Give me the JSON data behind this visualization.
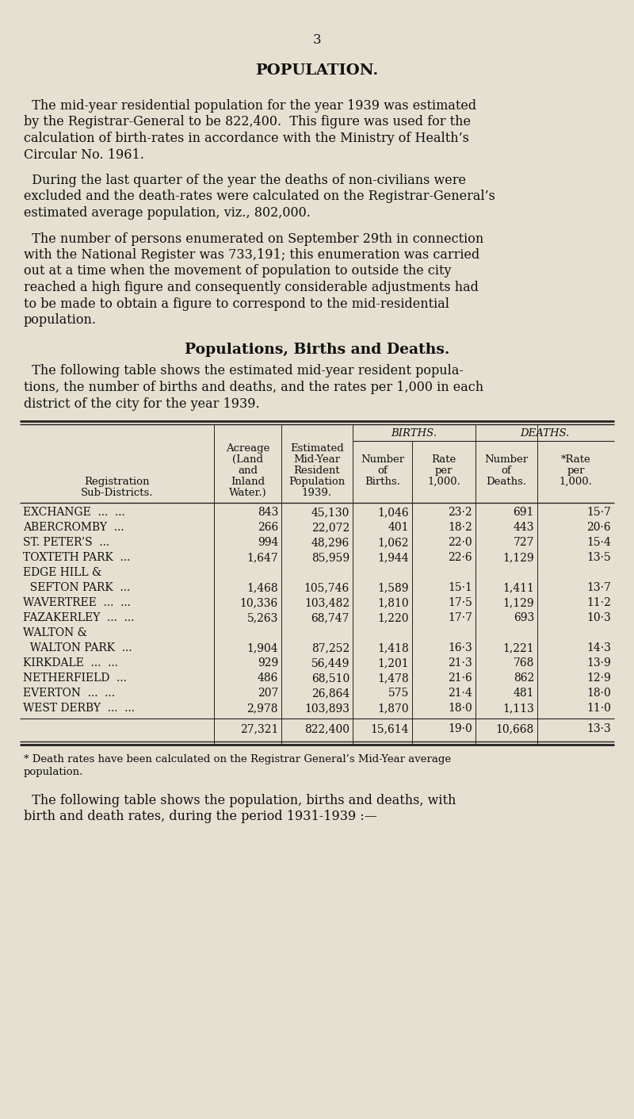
{
  "page_number": "3",
  "bg_color": "#e5e0d0",
  "title": "POPULATION.",
  "para1_lines": [
    "  The mid-year residential population for the year 1939 was estimated",
    "by the Registrar-General to be 822,400.  This figure was used for the",
    "calculation of birth-rates in accordance with the Ministry of Health’s",
    "Circular No. 1961."
  ],
  "para2_lines": [
    "  During the last quarter of the year the deaths of non-civilians were",
    "excluded and the death-rates were calculated on the Registrar-General’s",
    "estimated average population, viz., 802,000."
  ],
  "para3_lines": [
    "  The number of persons enumerated on September 29th in connection",
    "with the National Register was 733,191; this enumeration was carried",
    "out at a time when the movement of population to outside the city",
    "reached a high figure and consequently considerable adjustments had",
    "to be made to obtain a figure to correspond to the mid-residential",
    "population."
  ],
  "section_title": "Populations, Births and Deaths.",
  "para4_lines": [
    "  The following table shows the estimated mid-year resident popula-",
    "tions, the number of births and deaths, and the rates per 1,000 in each",
    "district of the city for the year 1939."
  ],
  "col_headers": [
    "Registration\nSub-Districts.",
    "Acreage\n(Land\nand\nInland\nWater.)",
    "Estimated\nMid-Year\nResident\nPopulation\n1939.",
    "Number\nof\nBirths.",
    "Rate\nper\n1,000.",
    "Number\nof\nDeaths.",
    "*Rate\nper\n1,000."
  ],
  "births_header": "BIRTHS.",
  "deaths_header": "DEATHS.",
  "table_rows": [
    [
      "EXCHANGE  ...  ...",
      "843",
      "45,130",
      "1,046",
      "23·2",
      "691",
      "15·7"
    ],
    [
      "ABERCROMBY  ...",
      "266",
      "22,072",
      "401",
      "18·2",
      "443",
      "20·6"
    ],
    [
      "ST. PETER’S  ...",
      "994",
      "48,296",
      "1,062",
      "22·0",
      "727",
      "15·4"
    ],
    [
      "TOXTETH PARK  ...",
      "1,647",
      "85,959",
      "1,944",
      "22·6",
      "1,129",
      "13·5"
    ],
    [
      "EDGE HILL &",
      "",
      "",
      "",
      "",
      "",
      ""
    ],
    [
      "  SEFTON PARK  ...",
      "1,468",
      "105,746",
      "1,589",
      "15·1",
      "1,411",
      "13·7"
    ],
    [
      "WAVERTREE  ...  ...",
      "10,336",
      "103,482",
      "1,810",
      "17·5",
      "1,129",
      "11·2"
    ],
    [
      "FAZAKERLEY  ...  ...",
      "5,263",
      "68,747",
      "1,220",
      "17·7",
      "693",
      "10·3"
    ],
    [
      "WALTON &",
      "",
      "",
      "",
      "",
      "",
      ""
    ],
    [
      "  WALTON PARK  ...",
      "1,904",
      "87,252",
      "1,418",
      "16·3",
      "1,221",
      "14·3"
    ],
    [
      "KIRKDALE  ...  ...",
      "929",
      "56,449",
      "1,201",
      "21·3",
      "768",
      "13·9"
    ],
    [
      "NETHERFIELD  ...",
      "486",
      "68,510",
      "1,478",
      "21·6",
      "862",
      "12·9"
    ],
    [
      "EVERTON  ...  ...",
      "207",
      "26,864",
      "575",
      "21·4",
      "481",
      "18·0"
    ],
    [
      "WEST DERBY  ...  ...",
      "2,978",
      "103,893",
      "1,870",
      "18·0",
      "1,113",
      "11·0"
    ]
  ],
  "table_total": [
    "",
    "27,321",
    "822,400",
    "15,614",
    "19·0",
    "10,668",
    "13·3"
  ],
  "footnote_lines": [
    "* Death rates have been calculated on the Registrar General’s Mid-Year average",
    "population."
  ],
  "para5_lines": [
    "  The following table shows the population, births and deaths, with",
    "birth and death rates, during the period 1931-1939 :—"
  ]
}
